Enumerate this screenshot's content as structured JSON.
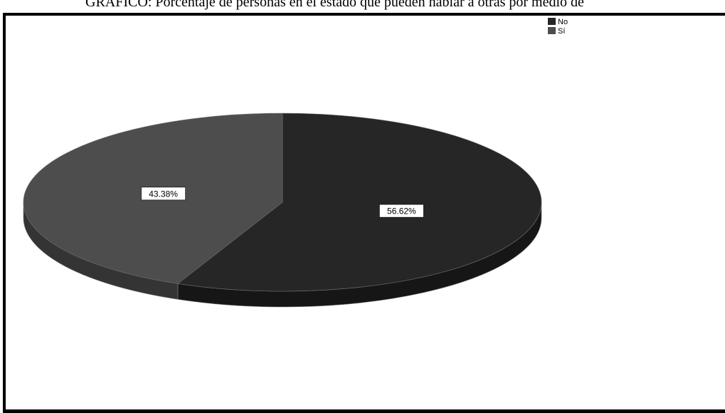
{
  "page": {
    "title": "GRÁFICO: Porcentaje de personas en el estado que pueden hablar a otras por medio de"
  },
  "colors": {
    "no": "#262626",
    "si": "#4d4d4d",
    "no_side": "#161616",
    "si_side": "#343434",
    "edge": "#6e6e6e"
  },
  "chart_data": {
    "type": "pie",
    "title": "",
    "legend_position": "top-right",
    "slices": [
      {
        "label": "No",
        "value": 56.62,
        "data_label": "56.62%"
      },
      {
        "label": "Sí",
        "value": 43.38,
        "data_label": "43.38%"
      }
    ]
  }
}
